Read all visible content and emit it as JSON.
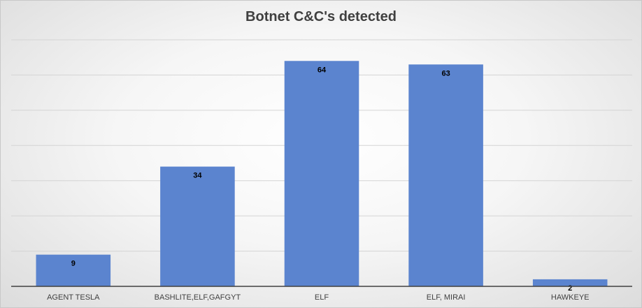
{
  "chart_data": {
    "type": "bar",
    "title": "Botnet C&C's detected",
    "xlabel": "",
    "ylabel": "",
    "categories": [
      "AGENT TESLA",
      "BASHLITE,ELF,GAFGYT",
      "ELF",
      "ELF, MIRAI",
      "HAWKEYE"
    ],
    "values": [
      9,
      34,
      64,
      63,
      2
    ],
    "ylim": [
      0,
      70
    ],
    "grid": true,
    "legend": "none",
    "bar_color": "#5b84cf",
    "data_labels": [
      "9",
      "34",
      "64",
      "63",
      "2"
    ]
  }
}
